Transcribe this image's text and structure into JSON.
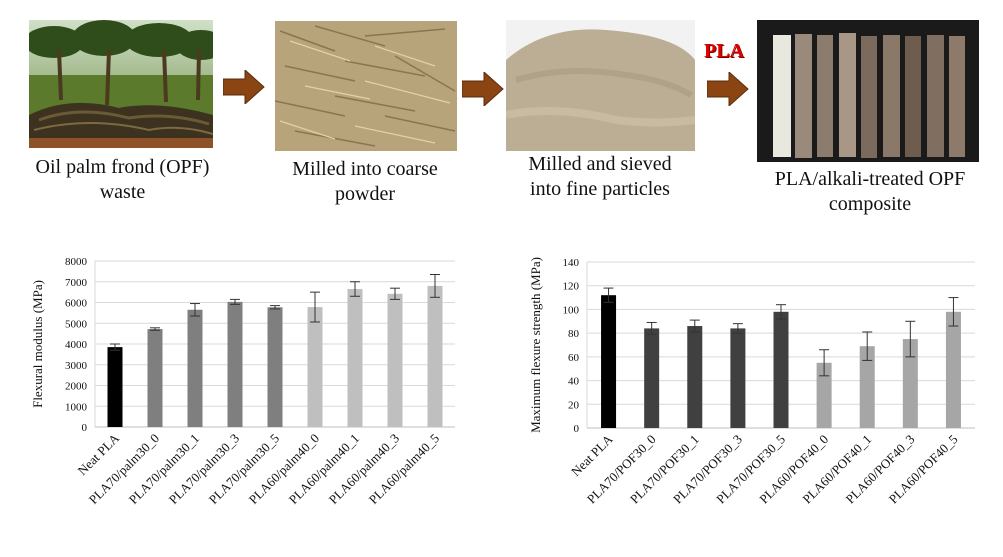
{
  "workflow": {
    "steps": [
      {
        "caption_lines": [
          "Oil palm frond (OPF)",
          "waste"
        ],
        "image": "oil-palm-plantation-photo"
      },
      {
        "caption_lines": [
          "Milled into coarse",
          "powder"
        ],
        "image": "coarse-fiber-photo"
      },
      {
        "caption_lines": [
          "Milled and sieved",
          "into fine particles"
        ],
        "image": "fine-powder-photo"
      },
      {
        "caption_lines": [
          "PLA/alkali-treated OPF",
          "composite"
        ],
        "image": "composite-specimens-photo"
      }
    ],
    "pla_label": "PLA",
    "colors": {
      "arrow": "#8b4513",
      "pla": "#e00000"
    }
  },
  "chart_data": [
    {
      "type": "bar",
      "ylabel": "Flexural modulus (MPa)",
      "ylim": [
        0,
        8000
      ],
      "ytick_step": 1000,
      "yticks": [
        "0",
        "1000",
        "2000",
        "3000",
        "4000",
        "5000",
        "6000",
        "7000",
        "8000"
      ],
      "grid": true,
      "categories": [
        "Neat PLA",
        "PLA70/palm30_0",
        "PLA70/palm30_1",
        "PLA70/palm30_3",
        "PLA70/palm30_5",
        "PLA60/palm40_0",
        "PLA60/palm40_1",
        "PLA60/palm40_3",
        "PLA60/palm40_5"
      ],
      "values": [
        3850,
        4720,
        5650,
        6030,
        5770,
        5780,
        6650,
        6420,
        6800
      ],
      "errors": [
        150,
        60,
        300,
        120,
        80,
        720,
        350,
        270,
        550
      ],
      "colors": [
        "#000000",
        "#7f7f7f",
        "#7f7f7f",
        "#7f7f7f",
        "#7f7f7f",
        "#bfbfbf",
        "#bfbfbf",
        "#bfbfbf",
        "#bfbfbf"
      ]
    },
    {
      "type": "bar",
      "ylabel": "Maximum flexure strength (MPa)",
      "ylim": [
        0,
        140
      ],
      "ytick_step": 20,
      "yticks": [
        "0",
        "20",
        "40",
        "60",
        "80",
        "100",
        "120",
        "140"
      ],
      "grid": true,
      "categories": [
        "Neat PLA",
        "PLA70/POF30_0",
        "PLA70/POF30_1",
        "PLA70/POF30_3",
        "PLA70/POF30_5",
        "PLA60/POF40_0",
        "PLA60/POF40_1",
        "PLA60/POF40_3",
        "PLA60/POF40_5"
      ],
      "values": [
        112,
        84,
        86,
        84,
        98,
        55,
        69,
        75,
        98
      ],
      "errors": [
        6,
        5,
        5,
        4,
        6,
        11,
        12,
        15,
        12
      ],
      "colors": [
        "#000000",
        "#404040",
        "#404040",
        "#404040",
        "#404040",
        "#a6a6a6",
        "#a6a6a6",
        "#a6a6a6",
        "#a6a6a6"
      ]
    }
  ]
}
